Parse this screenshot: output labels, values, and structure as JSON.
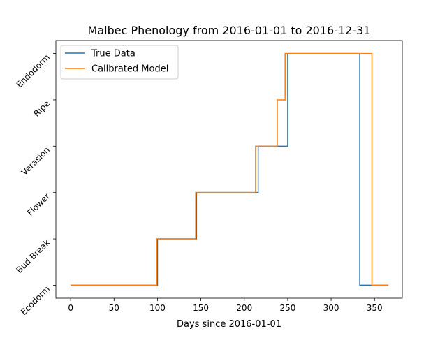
{
  "chart_data": {
    "type": "line",
    "title": "Malbec Phenology from 2016-01-01 to 2016-12-31",
    "xlabel": "Days since 2016-01-01",
    "ylabel": "",
    "xlim": [
      -17,
      382
    ],
    "ylim": [
      -0.28,
      5.28
    ],
    "xticks": [
      0,
      50,
      100,
      150,
      200,
      250,
      300,
      350
    ],
    "ytick_labels": [
      "Ecodorm",
      "Bud Break",
      "Flower",
      "Verasion",
      "Ripe",
      "Endodorm"
    ],
    "legend_position": "upper-left",
    "grid": false,
    "series": [
      {
        "name": "True Data",
        "color": "#1f77b4",
        "x": [
          0,
          100,
          100,
          145,
          145,
          216,
          216,
          250,
          250,
          333,
          333,
          366
        ],
        "y": [
          0,
          0,
          1,
          1,
          2,
          2,
          3,
          3,
          5,
          5,
          0,
          0
        ]
      },
      {
        "name": "Calibrated Model",
        "color": "#ff7f0e",
        "x": [
          0,
          99,
          99,
          144,
          144,
          213,
          213,
          238,
          238,
          244,
          244,
          247,
          247,
          347,
          347,
          366
        ],
        "y": [
          0,
          0,
          1,
          1,
          2,
          2,
          3,
          3,
          4,
          4,
          4,
          4,
          5,
          5,
          0,
          0
        ]
      }
    ]
  }
}
